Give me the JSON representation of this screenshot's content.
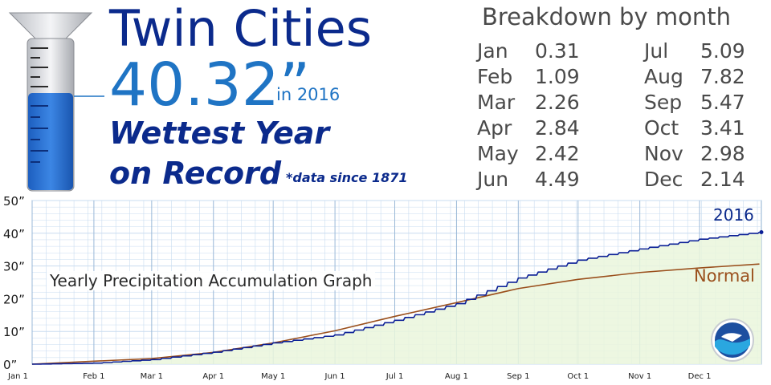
{
  "header": {
    "title": "Twin Cities",
    "total": "40.32”",
    "year_text": "in 2016",
    "headline_line1": "Wettest Year",
    "headline_line2": "on Record",
    "footnote": "*data since 1871"
  },
  "breakdown": {
    "title": "Breakdown by month",
    "months": [
      {
        "name": "Jan",
        "value": "0.31"
      },
      {
        "name": "Feb",
        "value": "1.09"
      },
      {
        "name": "Mar",
        "value": "2.26"
      },
      {
        "name": "Apr",
        "value": "2.84"
      },
      {
        "name": "May",
        "value": "2.42"
      },
      {
        "name": "Jun",
        "value": "4.49"
      },
      {
        "name": "Jul",
        "value": "5.09"
      },
      {
        "name": "Aug",
        "value": "7.82"
      },
      {
        "name": "Sep",
        "value": "5.47"
      },
      {
        "name": "Oct",
        "value": "3.41"
      },
      {
        "name": "Nov",
        "value": "2.98"
      },
      {
        "name": "Dec",
        "value": "2.14"
      }
    ]
  },
  "colors": {
    "observed": "#0b1f96",
    "normal": "#9a4f1c",
    "fill": "#eaf6dc",
    "grid": "#c9dcf0"
  },
  "chart_data": {
    "type": "line",
    "title": "Yearly Precipitation Accumulation Graph",
    "xlabel": "",
    "ylabel": "",
    "x_tick_labels": [
      "Jan 1",
      "Feb 1",
      "Mar 1",
      "Apr 1",
      "May 1",
      "Jun 1",
      "Jul 1",
      "Aug 1",
      "Sep 1",
      "Oct 1",
      "Nov 1",
      "Dec 1"
    ],
    "y_tick_labels": [
      "0”",
      "10”",
      "20”",
      "30”",
      "40”",
      "50”"
    ],
    "xlim": [
      "Jan 1",
      "Dec 31"
    ],
    "ylim": [
      0,
      50
    ],
    "grid": true,
    "series": [
      {
        "name": "2016",
        "x": [
          "Jan 1",
          "Feb 1",
          "Mar 1",
          "Apr 1",
          "May 1",
          "Jun 1",
          "Jul 1",
          "Aug 1",
          "Sep 1",
          "Oct 1",
          "Nov 1",
          "Dec 1",
          "Dec 31"
        ],
        "values": [
          0,
          0.31,
          1.4,
          3.66,
          6.5,
          8.92,
          13.41,
          18.5,
          26.32,
          31.79,
          35.2,
          38.18,
          40.32
        ]
      },
      {
        "name": "Normal",
        "x": [
          "Jan 1",
          "Feb 1",
          "Mar 1",
          "Apr 1",
          "May 1",
          "Jun 1",
          "Jul 1",
          "Aug 1",
          "Sep 1",
          "Oct 1",
          "Nov 1",
          "Dec 1",
          "Dec 31"
        ],
        "values": [
          0,
          0.9,
          1.7,
          3.6,
          6.5,
          10.2,
          14.6,
          18.8,
          23.1,
          25.9,
          28.0,
          29.4,
          30.6
        ]
      }
    ]
  }
}
